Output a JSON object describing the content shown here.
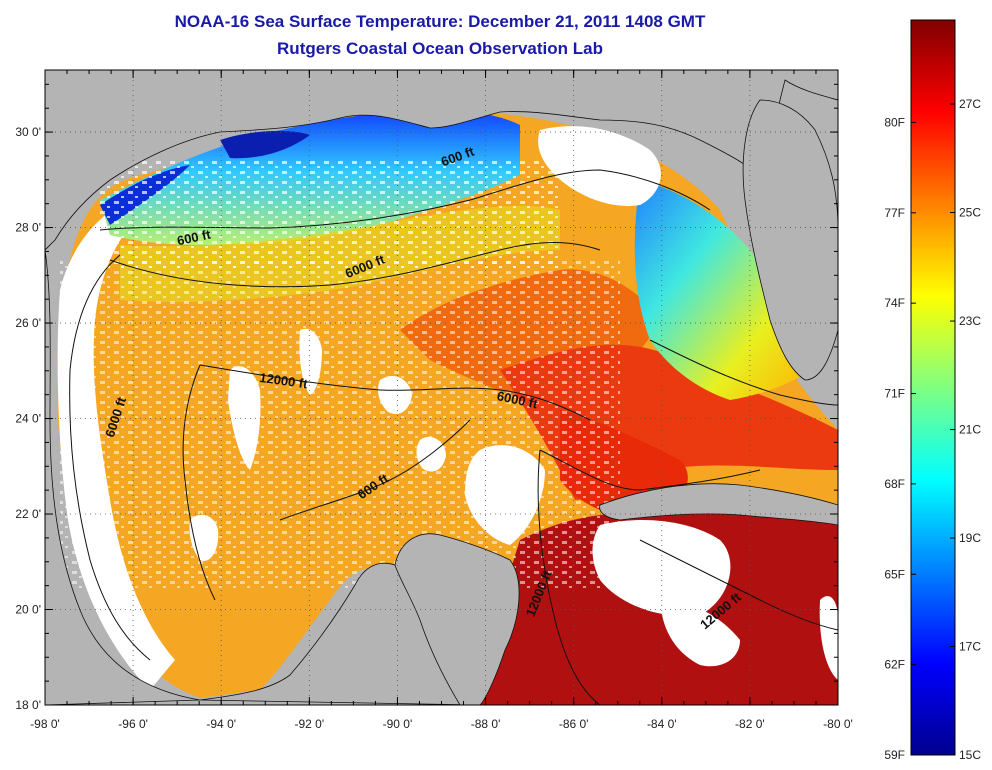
{
  "header": {
    "title_line1": "NOAA-16 Sea Surface Temperature:  December 21, 2011 1408 GMT",
    "title_line2": "Rutgers Coastal Ocean Observation Lab"
  },
  "map": {
    "x_axis_labels": [
      "-98 0'",
      "-96 0'",
      "-94 0'",
      "-92 0'",
      "-90 0'",
      "-88 0'",
      "-86 0'",
      "-84 0'",
      "-82 0'",
      "-80 0'"
    ],
    "y_axis_labels": [
      "30 0'",
      "28 0'",
      "26 0'",
      "24 0'",
      "22 0'",
      "20 0'",
      "18 0'"
    ],
    "lon_range": [
      -98,
      -80
    ],
    "lat_range": [
      18,
      31.3
    ],
    "contour_labels": [
      {
        "text": "600 ft",
        "lon": -94.6,
        "lat": 27.7,
        "rotate": -12
      },
      {
        "text": "600 ft",
        "lon": -88.6,
        "lat": 29.4,
        "rotate": -20
      },
      {
        "text": "6000 ft",
        "lon": -90.7,
        "lat": 27.1,
        "rotate": -22
      },
      {
        "text": "12000 ft",
        "lon": -92.6,
        "lat": 24.7,
        "rotate": 8
      },
      {
        "text": "6000 ft",
        "lon": -96.3,
        "lat": 24.0,
        "rotate": -72
      },
      {
        "text": "6000 ft",
        "lon": -87.3,
        "lat": 24.3,
        "rotate": 12
      },
      {
        "text": "600 ft",
        "lon": -90.5,
        "lat": 22.5,
        "rotate": -34
      },
      {
        "text": "12000 ft",
        "lon": -86.7,
        "lat": 20.3,
        "rotate": -68
      },
      {
        "text": "12000 ft",
        "lon": -82.6,
        "lat": 19.9,
        "rotate": -40
      }
    ],
    "colors": {
      "land": "#b4b4b4",
      "cloud": "#ffffff",
      "contour": "#111111"
    }
  },
  "colorbar": {
    "fahrenheit_labels": [
      "80F",
      "77F",
      "74F",
      "71F",
      "68F",
      "65F",
      "62F",
      "59F"
    ],
    "celsius_labels": [
      "27C",
      "25C",
      "23C",
      "21C",
      "19C",
      "17C",
      "15C"
    ],
    "colors": [
      "#00008f",
      "#0000ff",
      "#0080ff",
      "#00ffff",
      "#80ff80",
      "#ffff00",
      "#ff8000",
      "#ff0000",
      "#800000"
    ]
  }
}
